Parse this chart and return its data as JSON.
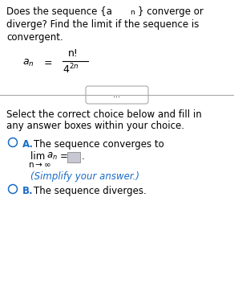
{
  "bg_color": "#ffffff",
  "text_color": "#000000",
  "blue_color": "#1a6cc7",
  "line_color": "#aaaaaa",
  "box_color": "#c8c8d4",
  "box_edge_color": "#999999",
  "font_size_main": 8.5,
  "font_size_formula": 9.0,
  "font_size_small": 7.5,
  "title1": "Does the sequence {a",
  "title1n": "n",
  "title1end": "} converge or",
  "title2": "diverge? Find the limit if the sequence is",
  "title3": "convergent.",
  "sel1": "Select the correct choice below and fill in",
  "sel2": "any answer boxes within your choice.",
  "choiceA_bold": "A.",
  "choiceA_text": "The sequence converges to",
  "lim_text": "lim  a",
  "lim_n": "n",
  "lim_eq": " =",
  "period": ".",
  "n_inf": "n",
  "arrow_inf": "→∞",
  "simplify": "(Simplify your answer.)",
  "choiceB_bold": "B.",
  "choiceB_text": "The sequence diverges.",
  "dots": "..."
}
